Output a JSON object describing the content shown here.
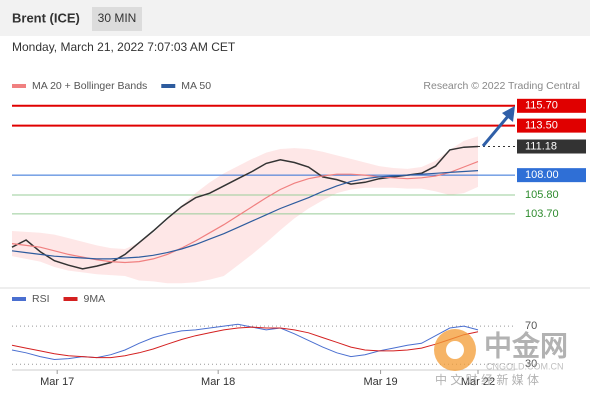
{
  "header": {
    "instrument": "Brent (ICE)",
    "interval": "30 MIN",
    "timestamp": "Monday, March 21, 2022 7:07:03 AM CET",
    "credit": "Research © 2022 Trading Central"
  },
  "chart_data": [
    {
      "type": "line",
      "x": [
        0,
        1,
        2,
        3,
        4,
        5,
        6,
        7,
        8,
        9,
        10,
        11,
        12,
        13,
        14,
        15,
        16,
        17,
        18,
        19,
        20,
        21,
        22,
        23,
        24,
        25,
        26,
        27,
        28,
        29,
        30,
        31,
        32,
        33
      ],
      "xlim": [
        0,
        33
      ],
      "ylim": [
        95.8,
        116.9
      ],
      "series": [
        {
          "name": "Price",
          "color": "#333333",
          "values": [
            100.0,
            100.8,
            99.5,
            98.5,
            98.0,
            97.6,
            97.9,
            98.3,
            99.2,
            100.5,
            101.8,
            103.2,
            104.5,
            105.5,
            106.0,
            106.8,
            107.6,
            108.4,
            109.3,
            109.7,
            109.4,
            108.9,
            107.8,
            107.5,
            107.0,
            107.2,
            107.6,
            107.8,
            108.0,
            108.2,
            109.0,
            110.8,
            111.1,
            111.18
          ]
        },
        {
          "name": "MA 20 + Bollinger Bands",
          "color": "#f08080",
          "values": [
            100.4,
            100.2,
            100.0,
            99.6,
            99.2,
            98.9,
            98.6,
            98.4,
            98.3,
            98.4,
            98.7,
            99.2,
            99.9,
            100.7,
            101.6,
            102.5,
            103.5,
            104.5,
            105.5,
            106.4,
            107.1,
            107.6,
            107.9,
            108.1,
            108.1,
            108.0,
            107.8,
            107.7,
            107.6,
            107.7,
            107.9,
            108.3,
            108.9,
            109.5
          ],
          "upper": [
            101.8,
            101.7,
            101.6,
            101.4,
            101.0,
            100.6,
            100.2,
            99.9,
            99.8,
            100.5,
            101.6,
            103.0,
            104.6,
            106.0,
            107.2,
            108.2,
            109.0,
            109.8,
            110.5,
            110.9,
            111.0,
            110.9,
            110.6,
            110.2,
            109.8,
            109.4,
            109.0,
            108.8,
            108.7,
            108.9,
            109.6,
            110.8,
            111.8,
            112.3
          ],
          "lower": [
            99.0,
            98.7,
            98.4,
            97.8,
            97.4,
            97.2,
            97.0,
            96.9,
            96.8,
            96.3,
            96.2,
            96.0,
            96.0,
            96.1,
            96.4,
            96.8,
            98.0,
            99.2,
            100.5,
            101.9,
            103.2,
            104.3,
            105.2,
            106.0,
            106.4,
            106.6,
            106.6,
            106.6,
            106.5,
            106.5,
            106.2,
            105.8,
            106.0,
            106.7
          ]
        },
        {
          "name": "MA 50",
          "color": "#2e5c9e",
          "values": [
            99.6,
            99.4,
            99.2,
            99.0,
            98.9,
            98.8,
            98.7,
            98.7,
            98.8,
            98.9,
            99.1,
            99.4,
            99.8,
            100.3,
            100.9,
            101.5,
            102.2,
            102.9,
            103.6,
            104.3,
            104.9,
            105.5,
            106.2,
            106.8,
            107.3,
            107.6,
            107.8,
            107.9,
            108.0,
            108.1,
            108.2,
            108.3,
            108.4,
            108.5
          ]
        }
      ],
      "levels": [
        {
          "value": 115.7,
          "label": "115.70",
          "color": "#e00000"
        },
        {
          "value": 113.5,
          "label": "113.50",
          "color": "#e00000"
        },
        {
          "value": 111.18,
          "label": "111.18",
          "color": "#333333"
        },
        {
          "value": 108,
          "label": "108.00",
          "color": "#2f6fd6"
        },
        {
          "value": 105.8,
          "label": "105.80",
          "color": "#2e8b2e"
        },
        {
          "value": 103.7,
          "label": "103.70",
          "color": "#2e8b2e"
        }
      ]
    },
    {
      "type": "line",
      "x": [
        0,
        1,
        2,
        3,
        4,
        5,
        6,
        7,
        8,
        9,
        10,
        11,
        12,
        13,
        14,
        15,
        16,
        17,
        18,
        19,
        20,
        21,
        22,
        23,
        24,
        25,
        26,
        27,
        28,
        29,
        30,
        31,
        32,
        33
      ],
      "xlim": [
        0,
        33
      ],
      "ylim": [
        24,
        89
      ],
      "yticks": [
        30,
        70
      ],
      "xticks": [
        {
          "value": 3.2,
          "label": "Mar 17"
        },
        {
          "value": 14.6,
          "label": "Mar 18"
        },
        {
          "value": 26.1,
          "label": "Mar 19"
        },
        {
          "value": 33,
          "label": "Mar 22"
        }
      ],
      "series": [
        {
          "name": "RSI",
          "color": "#4a6fd0",
          "values": [
            45,
            42,
            38,
            35,
            36,
            38,
            37,
            40,
            45,
            52,
            58,
            62,
            65,
            66,
            68,
            70,
            72,
            69,
            66,
            68,
            62,
            55,
            48,
            42,
            38,
            40,
            44,
            47,
            50,
            52,
            60,
            68,
            70,
            66
          ]
        },
        {
          "name": "9MA",
          "color": "#d42020",
          "values": [
            50,
            47,
            44,
            41,
            39,
            38,
            37,
            37,
            39,
            42,
            46,
            51,
            56,
            60,
            63,
            66,
            68,
            69,
            68,
            68,
            66,
            63,
            58,
            53,
            48,
            45,
            44,
            44,
            45,
            47,
            51,
            56,
            61,
            64
          ]
        }
      ]
    }
  ],
  "watermark": {
    "brand": "中金网",
    "url": "CNGOLD.COM.CN",
    "tagline": "中 文 财 经 新 媒 体"
  }
}
